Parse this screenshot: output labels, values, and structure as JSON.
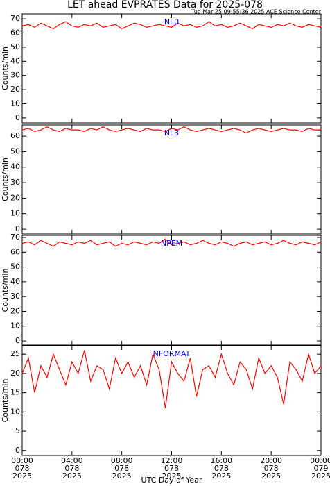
{
  "title": "LET ahead EVPRATES Data for 2025-078",
  "subtitle": "Tue Mar 25 09:55:36 2025 ACE Science Center",
  "chart_data": [
    {
      "type": "line",
      "y_label": "Counts/min",
      "label_color": "#0000ff",
      "x": [
        0,
        0.5,
        1,
        1.5,
        2,
        2.5,
        3,
        3.5,
        4,
        4.5,
        5,
        5.5,
        6,
        6.5,
        7,
        7.5,
        8,
        8.5,
        9,
        9.5,
        10,
        10.5,
        11,
        11.5,
        12,
        12.5,
        13,
        13.5,
        14,
        14.5,
        15,
        15.5,
        16,
        16.5,
        17,
        17.5,
        18,
        18.5,
        19,
        19.5,
        20,
        20.5,
        21,
        21.5,
        22,
        22.5,
        23,
        23.5,
        24
      ],
      "series": [
        {
          "name": "NL0",
          "color": "#ff0000",
          "values": [
            65,
            66,
            64,
            67,
            65,
            63,
            66,
            68,
            65,
            64,
            66,
            65,
            67,
            64,
            65,
            66,
            63,
            65,
            67,
            66,
            64,
            65,
            66,
            65,
            64,
            67,
            65,
            66,
            64,
            65,
            68,
            65,
            66,
            64,
            65,
            67,
            65,
            63,
            66,
            65,
            64,
            66,
            65,
            67,
            65,
            64,
            66,
            65,
            64
          ]
        }
      ],
      "xlim": [
        0,
        24
      ],
      "ylim": [
        -3.5,
        73.5
      ],
      "yticks": [
        0,
        10,
        20,
        30,
        40,
        50,
        60,
        70
      ]
    },
    {
      "type": "line",
      "y_label": "Counts/min",
      "label_color": "#0000ff",
      "x": [
        0,
        0.5,
        1,
        1.5,
        2,
        2.5,
        3,
        3.5,
        4,
        4.5,
        5,
        5.5,
        6,
        6.5,
        7,
        7.5,
        8,
        8.5,
        9,
        9.5,
        10,
        10.5,
        11,
        11.5,
        12,
        12.5,
        13,
        13.5,
        14,
        14.5,
        15,
        15.5,
        16,
        16.5,
        17,
        17.5,
        18,
        18.5,
        19,
        19.5,
        20,
        20.5,
        21,
        21.5,
        22,
        22.5,
        23,
        23.5,
        24
      ],
      "series": [
        {
          "name": "NL3",
          "color": "#ff0000",
          "values": [
            64,
            65,
            63,
            64,
            66,
            64,
            63,
            65,
            64,
            64,
            63,
            65,
            64,
            66,
            64,
            63,
            64,
            65,
            64,
            63,
            65,
            64,
            64,
            63,
            65,
            64,
            66,
            64,
            63,
            64,
            65,
            64,
            63,
            64,
            65,
            64,
            62,
            64,
            65,
            64,
            63,
            64,
            65,
            64,
            64,
            63,
            65,
            64,
            64
          ]
        }
      ],
      "xlim": [
        0,
        24
      ],
      "ylim": [
        -3.1,
        67.2
      ],
      "yticks": [
        0,
        10,
        20,
        30,
        40,
        50,
        60
      ]
    },
    {
      "type": "line",
      "y_label": "Counts/min",
      "label_color": "#0000ff",
      "x": [
        0,
        0.5,
        1,
        1.5,
        2,
        2.5,
        3,
        3.5,
        4,
        4.5,
        5,
        5.5,
        6,
        6.5,
        7,
        7.5,
        8,
        8.5,
        9,
        9.5,
        10,
        10.5,
        11,
        11.5,
        12,
        12.5,
        13,
        13.5,
        14,
        14.5,
        15,
        15.5,
        16,
        16.5,
        17,
        17.5,
        18,
        18.5,
        19,
        19.5,
        20,
        20.5,
        21,
        21.5,
        22,
        22.5,
        23,
        23.5,
        24
      ],
      "series": [
        {
          "name": "NPEM",
          "color": "#ff0000",
          "values": [
            66,
            67,
            65,
            68,
            66,
            64,
            67,
            66,
            65,
            67,
            66,
            68,
            65,
            66,
            67,
            64,
            66,
            65,
            67,
            66,
            65,
            67,
            66,
            69,
            65,
            66,
            67,
            65,
            66,
            68,
            66,
            65,
            67,
            66,
            64,
            66,
            67,
            65,
            66,
            67,
            65,
            66,
            68,
            66,
            65,
            67,
            66,
            65,
            67
          ]
        }
      ],
      "xlim": [
        0,
        24
      ],
      "ylim": [
        -2.8,
        71.4
      ],
      "yticks": [
        0,
        10,
        20,
        30,
        40,
        50,
        60,
        70
      ]
    },
    {
      "type": "line",
      "y_label": "Counts/min",
      "x_label": "UTC Day of Year",
      "label_color": "#0000ff",
      "x": [
        0,
        0.5,
        1,
        1.5,
        2,
        2.5,
        3,
        3.5,
        4,
        4.5,
        5,
        5.5,
        6,
        6.5,
        7,
        7.5,
        8,
        8.5,
        9,
        9.5,
        10,
        10.5,
        11,
        11.5,
        12,
        12.5,
        13,
        13.5,
        14,
        14.5,
        15,
        15.5,
        16,
        16.5,
        17,
        17.5,
        18,
        18.5,
        19,
        19.5,
        20,
        20.5,
        21,
        21.5,
        22,
        22.5,
        23,
        23.5,
        24
      ],
      "series": [
        {
          "name": "NFORMAT",
          "color": "#ff0000",
          "values": [
            20,
            24,
            15,
            22,
            19,
            25,
            21,
            17,
            23,
            20,
            26,
            18,
            22,
            21,
            16,
            24,
            20,
            23,
            19,
            22,
            17,
            25,
            21,
            11,
            23,
            20,
            18,
            24,
            14,
            21,
            22,
            19,
            25,
            20,
            17,
            23,
            21,
            16,
            24,
            20,
            22,
            19,
            12,
            23,
            21,
            18,
            25,
            20,
            22
          ]
        }
      ],
      "xlim": [
        0,
        24
      ],
      "ylim": [
        -1.3,
        27.2
      ],
      "yticks": [
        0,
        5,
        10,
        15,
        20,
        25
      ],
      "xticks": [
        {
          "value": 0,
          "label": "00:00\n078\n2025"
        },
        {
          "value": 4,
          "label": "04:00\n078\n2025"
        },
        {
          "value": 8,
          "label": "08:00\n078\n2025"
        },
        {
          "value": 12,
          "label": "12:00\n078\n2025"
        },
        {
          "value": 16,
          "label": "16:00\n078\n2025"
        },
        {
          "value": 20,
          "label": "20:00\n078\n2025"
        },
        {
          "value": 24,
          "label": "00:00\n079\n2025"
        }
      ]
    }
  ]
}
